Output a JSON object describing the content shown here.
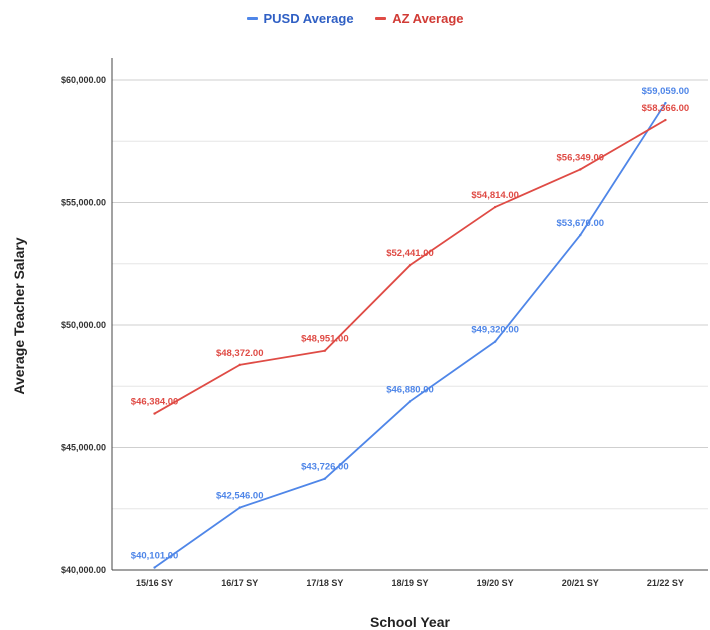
{
  "chart_data": {
    "type": "line",
    "categories": [
      "15/16 SY",
      "16/17 SY",
      "17/18 SY",
      "18/19 SY",
      "19/20 SY",
      "20/21 SY",
      "21/22 SY"
    ],
    "series": [
      {
        "name": "PUSD Average",
        "color": "#4f86e8",
        "values": [
          40101,
          42546,
          43726,
          46880,
          49320,
          53670,
          59059
        ],
        "labels": [
          "$40,101.00",
          "$42,546.00",
          "$43,726.00",
          "$46,880.00",
          "$49,320.00",
          "$53,670.00",
          "$59,059.00"
        ]
      },
      {
        "name": "AZ Average",
        "color": "#df4b45",
        "values": [
          46384,
          48372,
          48951,
          52441,
          54814,
          56349,
          58366
        ],
        "labels": [
          "$46,384.00",
          "$48,372.00",
          "$48,951.00",
          "$52,441.00",
          "$54,814.00",
          "$56,349.00",
          "$58,366.00"
        ]
      }
    ],
    "xlabel": "School Year",
    "ylabel": "Average Teacher Salary",
    "ylim": [
      40000,
      60000
    ],
    "yticks": [
      40000,
      45000,
      50000,
      55000,
      60000
    ],
    "ytick_labels": [
      "$40,000.00",
      "$45,000.00",
      "$50,000.00",
      "$55,000.00",
      "$60,000.00"
    ],
    "legend_position": "top-center",
    "grid": true
  }
}
